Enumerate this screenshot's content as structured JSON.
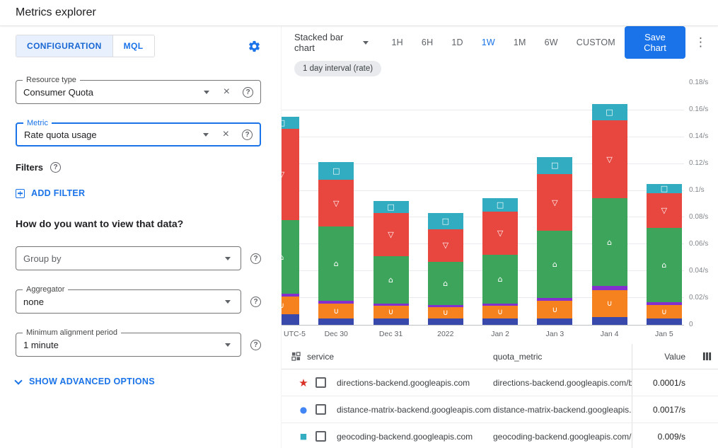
{
  "header": {
    "title": "Metrics explorer"
  },
  "config": {
    "tabs": {
      "configuration": "CONFIGURATION",
      "mql": "MQL"
    },
    "resource_type": {
      "label": "Resource type",
      "value": "Consumer Quota"
    },
    "metric": {
      "label": "Metric",
      "value": "Rate quota usage"
    },
    "filters_label": "Filters",
    "add_filter": "ADD FILTER",
    "view_heading": "How do you want to view that data?",
    "group_by": {
      "placeholder": "Group by"
    },
    "aggregator": {
      "label": "Aggregator",
      "value": "none"
    },
    "min_alignment": {
      "label": "Minimum alignment period",
      "value": "1 minute"
    },
    "advanced_options": "SHOW ADVANCED OPTIONS"
  },
  "toolbar": {
    "chart_type_label": "Stacked bar chart",
    "ranges": [
      "1H",
      "6H",
      "1D",
      "1W",
      "1M",
      "6W",
      "CUSTOM"
    ],
    "active_range": "1W",
    "save_button": "Save Chart"
  },
  "interval_chip": "1 day interval (rate)",
  "icons": {
    "clear": "×",
    "help": "?",
    "kebab": "⋮"
  },
  "colors": {
    "accent": "#1a73e8",
    "active_tab_bg": "#e8f0fe"
  },
  "chart_data": {
    "type": "bar",
    "stacked": true,
    "title": "",
    "x_tick_labels": [
      "UTC-5",
      "Dec 30",
      "Dec 31",
      "2022",
      "Jan 2",
      "Jan 3",
      "Jan 4",
      "Jan 5"
    ],
    "y_tick_labels": [
      "0.18/s",
      "0.16/s",
      "0.14/s",
      "0.12/s",
      "0.1/s",
      "0.08/s",
      "0.06/s",
      "0.04/s",
      "0.02/s",
      "0"
    ],
    "ylim": [
      0,
      0.18
    ],
    "unit": "/s",
    "legend": "none",
    "grid": true,
    "series": [
      {
        "name": "dark-blue",
        "color": "#3949ab",
        "marker": "",
        "values": [
          0.008,
          0.005,
          0.005,
          0.005,
          0.005,
          0.005,
          0.006,
          0.005
        ]
      },
      {
        "name": "orange",
        "color": "#f5821f",
        "marker": "∪",
        "values": [
          0.013,
          0.011,
          0.009,
          0.008,
          0.009,
          0.013,
          0.02,
          0.01
        ]
      },
      {
        "name": "purple",
        "color": "#8430ce",
        "marker": "",
        "values": [
          0.002,
          0.002,
          0.002,
          0.002,
          0.002,
          0.002,
          0.003,
          0.002
        ]
      },
      {
        "name": "green",
        "color": "#3da45c",
        "marker": "⌂",
        "values": [
          0.055,
          0.055,
          0.035,
          0.032,
          0.036,
          0.05,
          0.065,
          0.055
        ]
      },
      {
        "name": "red",
        "color": "#e8473f",
        "marker": "▽",
        "values": [
          0.068,
          0.035,
          0.032,
          0.024,
          0.032,
          0.042,
          0.058,
          0.026
        ]
      },
      {
        "name": "teal",
        "color": "#31acc0",
        "marker": "□",
        "values": [
          0.009,
          0.013,
          0.009,
          0.012,
          0.01,
          0.013,
          0.012,
          0.007
        ]
      }
    ]
  },
  "table": {
    "columns": {
      "service": "service",
      "quota_metric": "quota_metric",
      "value": "Value"
    },
    "rows": [
      {
        "marker": "★",
        "marker_color": "#d93025",
        "service": "directions-backend.googleapis.com",
        "quota_metric": "directions-backend.googleapis.com/billabl",
        "value": "0.0001/s"
      },
      {
        "marker": "●",
        "marker_color": "#4285f4",
        "service": "distance-matrix-backend.googleapis.com",
        "quota_metric": "distance-matrix-backend.googleapis.com/l",
        "value": "0.0017/s"
      },
      {
        "marker": "■",
        "marker_color": "#31acc0",
        "service": "geocoding-backend.googleapis.com",
        "quota_metric": "geocoding-backend.googleapis.com/billab",
        "value": "0.009/s"
      }
    ]
  }
}
